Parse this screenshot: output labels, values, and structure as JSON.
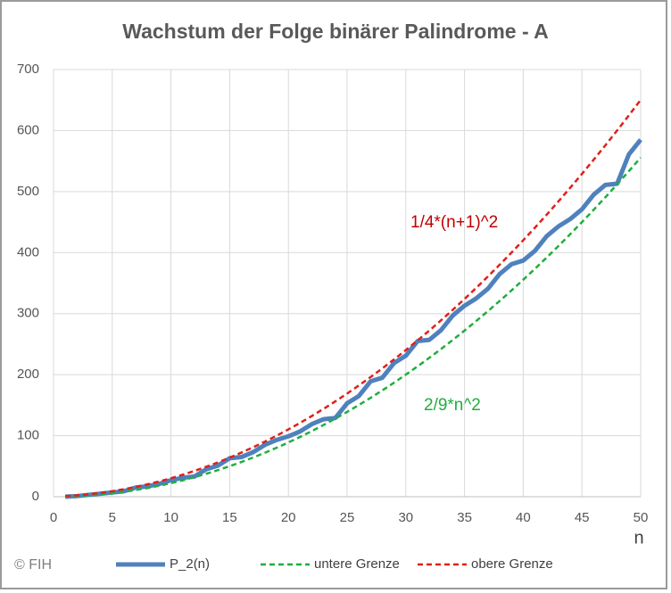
{
  "chart_data": {
    "type": "line",
    "title": "Wachstum der Folge binärer Palindrome - A",
    "x_label": "n",
    "credit": "© FIH",
    "x": [
      1,
      2,
      3,
      4,
      5,
      6,
      7,
      8,
      9,
      10,
      11,
      12,
      13,
      14,
      15,
      16,
      17,
      18,
      19,
      20,
      21,
      22,
      23,
      24,
      25,
      26,
      27,
      28,
      29,
      30,
      31,
      32,
      33,
      34,
      35,
      36,
      37,
      38,
      39,
      40,
      41,
      42,
      43,
      44,
      45,
      46,
      47,
      48,
      49,
      50
    ],
    "series": [
      {
        "name": "P_2(n)",
        "color": "#4f81bd",
        "dash": false,
        "width": 5,
        "values": [
          0,
          1,
          3,
          5,
          7,
          9,
          15,
          17,
          21,
          27,
          31,
          33,
          45,
          51,
          63,
          65,
          73,
          85,
          93,
          99,
          107,
          119,
          127,
          129,
          153,
          165,
          189,
          195,
          219,
          231,
          255,
          257,
          273,
          297,
          313,
          325,
          341,
          365,
          381,
          387,
          403,
          427,
          443,
          455,
          471,
          495,
          511,
          513,
          561,
          585
        ]
      },
      {
        "name": "untere Grenze",
        "color": "#1fae3f",
        "dash": true,
        "width": 2.5,
        "values": [
          0.22,
          0.89,
          2,
          3.56,
          5.56,
          8,
          10.89,
          14.22,
          18,
          22.22,
          26.89,
          32,
          37.56,
          43.56,
          50,
          56.89,
          64.22,
          72,
          80.22,
          88.89,
          98,
          107.56,
          117.56,
          128,
          138.89,
          150.22,
          162,
          174.22,
          186.89,
          200,
          213.56,
          227.56,
          242,
          256.89,
          272.22,
          288,
          304.22,
          320.89,
          338,
          355.56,
          373.56,
          392,
          410.89,
          430.22,
          450,
          470.22,
          490.89,
          512,
          533.56,
          555.56
        ]
      },
      {
        "name": "obere Grenze",
        "color": "#e0201b",
        "dash": true,
        "width": 2.5,
        "values": [
          1,
          2.25,
          4,
          6.25,
          9,
          12.25,
          16,
          20.25,
          25,
          30.25,
          36,
          42.25,
          49,
          56.25,
          64,
          72.25,
          81,
          90.25,
          100,
          110.25,
          121,
          132.25,
          144,
          156.25,
          169,
          182.25,
          196,
          210.25,
          225,
          240.25,
          256,
          272.25,
          289,
          306.25,
          324,
          342.25,
          361,
          380.25,
          400,
          420.25,
          441,
          462.25,
          484,
          506.25,
          529,
          552.25,
          576,
          600.25,
          625,
          650.25
        ]
      }
    ],
    "annotations": [
      {
        "text": "1/4*(n+1)^2",
        "color": "#c00000"
      },
      {
        "text": "2/9*n^2",
        "color": "#1fae3f"
      }
    ],
    "xlim": [
      0,
      50
    ],
    "xticks": [
      0,
      5,
      10,
      15,
      20,
      25,
      30,
      35,
      40,
      45,
      50
    ],
    "ylim": [
      0,
      700
    ],
    "yticks": [
      0,
      100,
      200,
      300,
      400,
      500,
      600,
      700
    ],
    "grid": true
  }
}
